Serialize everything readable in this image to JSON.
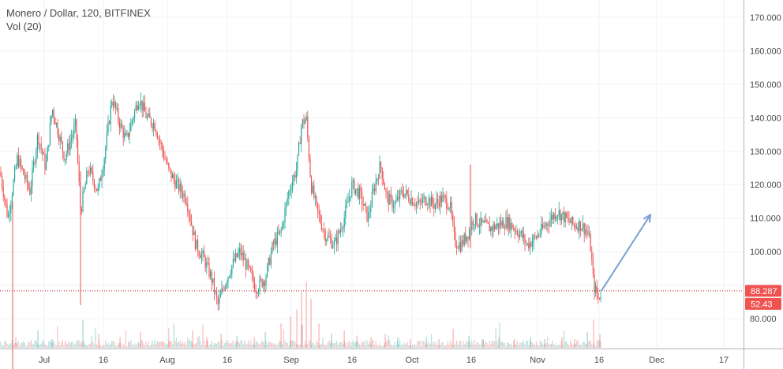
{
  "header": {
    "title": "Monero / Dollar, 120, BITFINEX",
    "indicator": "Vol (20)"
  },
  "chart_data": {
    "type": "candlestick",
    "title": "Monero / Dollar, 120, BITFINEX",
    "indicator": "Vol (20)",
    "grid": true,
    "ylim": [
      72,
      174
    ],
    "y_ticks": [
      "80.000",
      "100.000",
      "110.000",
      "120.000",
      "130.000",
      "140.000",
      "150.000",
      "160.000",
      "170.000"
    ],
    "y_tick_values": [
      80,
      100,
      110,
      120,
      130,
      140,
      150,
      160,
      170
    ],
    "x_ticks": [
      "Jul",
      "16",
      "Aug",
      "16",
      "Sep",
      "16",
      "Oct",
      "16",
      "Nov",
      "16",
      "Dec",
      "17"
    ],
    "current_price": 88.287,
    "current_price_label": "88.287",
    "current_volume_label": "52.43",
    "price_path": [
      [
        0,
        124
      ],
      [
        10,
        110
      ],
      [
        22,
        128
      ],
      [
        38,
        118
      ],
      [
        48,
        135
      ],
      [
        58,
        125
      ],
      [
        66,
        143
      ],
      [
        82,
        128
      ],
      [
        96,
        138
      ],
      [
        102,
        112
      ],
      [
        112,
        125
      ],
      [
        124,
        118
      ],
      [
        132,
        128
      ],
      [
        142,
        146
      ],
      [
        152,
        138
      ],
      [
        160,
        133
      ],
      [
        168,
        140
      ],
      [
        176,
        146
      ],
      [
        186,
        140
      ],
      [
        196,
        138
      ],
      [
        206,
        130
      ],
      [
        214,
        124
      ],
      [
        224,
        120
      ],
      [
        236,
        116
      ],
      [
        248,
        102
      ],
      [
        258,
        98
      ],
      [
        268,
        92
      ],
      [
        276,
        84
      ],
      [
        284,
        90
      ],
      [
        294,
        96
      ],
      [
        304,
        100
      ],
      [
        314,
        95
      ],
      [
        324,
        89
      ],
      [
        336,
        92
      ],
      [
        346,
        102
      ],
      [
        356,
        106
      ],
      [
        366,
        118
      ],
      [
        376,
        125
      ],
      [
        382,
        138
      ],
      [
        388,
        140
      ],
      [
        394,
        120
      ],
      [
        402,
        112
      ],
      [
        412,
        105
      ],
      [
        424,
        102
      ],
      [
        436,
        110
      ],
      [
        446,
        120
      ],
      [
        456,
        117
      ],
      [
        466,
        110
      ],
      [
        474,
        119
      ],
      [
        482,
        126
      ],
      [
        490,
        116
      ],
      [
        500,
        114
      ],
      [
        510,
        118
      ],
      [
        520,
        116
      ],
      [
        530,
        114
      ],
      [
        540,
        116
      ],
      [
        550,
        114
      ],
      [
        560,
        116
      ],
      [
        570,
        114
      ],
      [
        576,
        103
      ],
      [
        584,
        102
      ],
      [
        594,
        106
      ],
      [
        600,
        110
      ],
      [
        610,
        108
      ],
      [
        622,
        107
      ],
      [
        632,
        108
      ],
      [
        642,
        109
      ],
      [
        652,
        107
      ],
      [
        660,
        105
      ],
      [
        668,
        102
      ],
      [
        678,
        104
      ],
      [
        688,
        107
      ],
      [
        698,
        110
      ],
      [
        706,
        112
      ],
      [
        716,
        110
      ],
      [
        726,
        108
      ],
      [
        736,
        108
      ],
      [
        744,
        106
      ],
      [
        748,
        102
      ],
      [
        752,
        90
      ],
      [
        758,
        86
      ],
      [
        762,
        88.3
      ]
    ],
    "volumes": [
      [
        20,
        6
      ],
      [
        48,
        10
      ],
      [
        66,
        5
      ],
      [
        105,
        16
      ],
      [
        125,
        8
      ],
      [
        152,
        6
      ],
      [
        178,
        9
      ],
      [
        214,
        4
      ],
      [
        244,
        10
      ],
      [
        262,
        6
      ],
      [
        280,
        8
      ],
      [
        300,
        7
      ],
      [
        322,
        6
      ],
      [
        336,
        9
      ],
      [
        356,
        14
      ],
      [
        368,
        18
      ],
      [
        376,
        22
      ],
      [
        382,
        32
      ],
      [
        388,
        38
      ],
      [
        394,
        28
      ],
      [
        404,
        14
      ],
      [
        420,
        8
      ],
      [
        436,
        10
      ],
      [
        452,
        7
      ],
      [
        470,
        6
      ],
      [
        488,
        8
      ],
      [
        504,
        6
      ],
      [
        520,
        5
      ],
      [
        540,
        6
      ],
      [
        556,
        5
      ],
      [
        574,
        11
      ],
      [
        594,
        7
      ],
      [
        612,
        5
      ],
      [
        632,
        6
      ],
      [
        652,
        5
      ],
      [
        672,
        6
      ],
      [
        690,
        5
      ],
      [
        712,
        6
      ],
      [
        728,
        5
      ],
      [
        744,
        9
      ],
      [
        752,
        16
      ],
      [
        760,
        8
      ]
    ],
    "projection_arrow": {
      "from": [
        762,
        88.3
      ],
      "to": [
        824,
        111
      ]
    }
  },
  "colors": {
    "up": "#26a69a",
    "down": "#ef5350",
    "grid": "#eef1f5",
    "axis": "#b0b3b8",
    "arrow": "#7aa0d4",
    "price_label": "#ef5350",
    "price_line": "#b71c1c"
  }
}
